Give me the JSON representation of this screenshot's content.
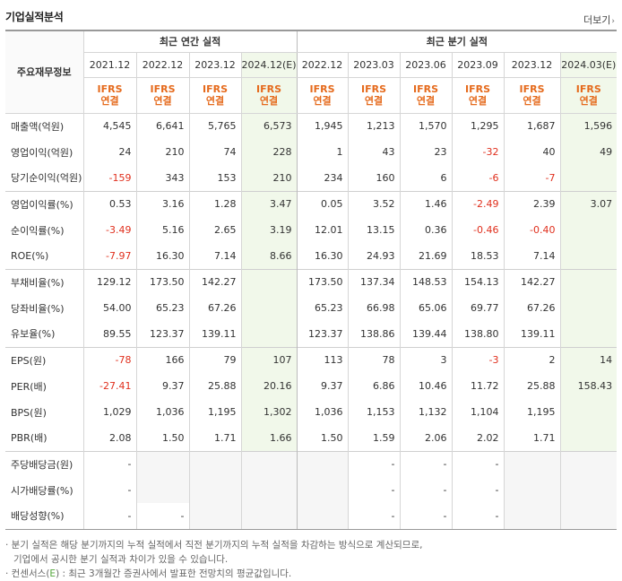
{
  "header": {
    "title": "기업실적분석",
    "more_label": "더보기",
    "more_arrow": "›"
  },
  "table": {
    "row_label_header": "주요재무정보",
    "group_annual": "최근 연간 실적",
    "group_quarter": "최근 분기 실적",
    "periods": [
      "2021.12",
      "2022.12",
      "2023.12",
      "2024.12(E)",
      "2022.12",
      "2023.03",
      "2023.06",
      "2023.09",
      "2023.12",
      "2024.03(E)"
    ],
    "basis_line1": "IFRS",
    "basis_line2": "연결",
    "rows": [
      {
        "label": "매출액(억원)",
        "values": [
          "4,545",
          "6,641",
          "5,765",
          "6,573",
          "1,945",
          "1,213",
          "1,570",
          "1,295",
          "1,687",
          "1,596"
        ]
      },
      {
        "label": "영업이익(억원)",
        "values": [
          "24",
          "210",
          "74",
          "228",
          "1",
          "43",
          "23",
          "-32",
          "40",
          "49"
        ]
      },
      {
        "label": "당기순이익(억원)",
        "values": [
          "-159",
          "343",
          "153",
          "210",
          "234",
          "160",
          "6",
          "-6",
          "-7",
          ""
        ]
      },
      {
        "label": "영업이익률(%)",
        "values": [
          "0.53",
          "3.16",
          "1.28",
          "3.47",
          "0.05",
          "3.52",
          "1.46",
          "-2.49",
          "2.39",
          "3.07"
        ]
      },
      {
        "label": "순이익률(%)",
        "values": [
          "-3.49",
          "5.16",
          "2.65",
          "3.19",
          "12.01",
          "13.15",
          "0.36",
          "-0.46",
          "-0.40",
          ""
        ]
      },
      {
        "label": "ROE(%)",
        "values": [
          "-7.97",
          "16.30",
          "7.14",
          "8.66",
          "16.30",
          "24.93",
          "21.69",
          "18.53",
          "7.14",
          ""
        ]
      },
      {
        "label": "부채비율(%)",
        "values": [
          "129.12",
          "173.50",
          "142.27",
          "",
          "173.50",
          "137.34",
          "148.53",
          "154.13",
          "142.27",
          ""
        ]
      },
      {
        "label": "당좌비율(%)",
        "values": [
          "54.00",
          "65.23",
          "67.26",
          "",
          "65.23",
          "66.98",
          "65.06",
          "69.77",
          "67.26",
          ""
        ]
      },
      {
        "label": "유보율(%)",
        "values": [
          "89.55",
          "123.37",
          "139.11",
          "",
          "123.37",
          "138.86",
          "139.44",
          "138.80",
          "139.11",
          ""
        ]
      },
      {
        "label": "EPS(원)",
        "values": [
          "-78",
          "166",
          "79",
          "107",
          "113",
          "78",
          "3",
          "-3",
          "2",
          "14"
        ]
      },
      {
        "label": "PER(배)",
        "values": [
          "-27.41",
          "9.37",
          "25.88",
          "20.16",
          "9.37",
          "6.86",
          "10.46",
          "11.72",
          "25.88",
          "158.43"
        ]
      },
      {
        "label": "BPS(원)",
        "values": [
          "1,029",
          "1,036",
          "1,195",
          "1,302",
          "1,036",
          "1,153",
          "1,132",
          "1,104",
          "1,195",
          ""
        ]
      },
      {
        "label": "PBR(배)",
        "values": [
          "2.08",
          "1.50",
          "1.71",
          "1.66",
          "1.50",
          "1.59",
          "2.06",
          "2.02",
          "1.71",
          ""
        ]
      },
      {
        "label": "주당배당금(원)",
        "values": [
          "-",
          "",
          "",
          "",
          "",
          "-",
          "-",
          "-",
          "",
          ""
        ]
      },
      {
        "label": "시가배당률(%)",
        "values": [
          "-",
          "",
          "",
          "",
          "",
          "-",
          "-",
          "-",
          "",
          ""
        ]
      },
      {
        "label": "배당성향(%)",
        "values": [
          "-",
          "-",
          "",
          "",
          "",
          "-",
          "-",
          "-",
          "",
          ""
        ]
      }
    ]
  },
  "notes": {
    "line1": "· 분기 실적은 해당 분기까지의 누적 실적에서 직전 분기까지의 누적 실적을 차감하는 방식으로 계산되므로,",
    "line2": "기업에서 공시한 분기 실적과 차이가 있을 수 있습니다.",
    "line3_pre": "· 컨센서스(",
    "line3_e": "E",
    "line3_post": ") : 최근 3개월간 증권사에서 발표한 전망치의 평균값입니다."
  },
  "colors": {
    "negative": "#e0301e",
    "ifrs": "#e56a1c",
    "estimate_bg": "#f1f8ea",
    "empty_bg": "#f6f6f6"
  }
}
